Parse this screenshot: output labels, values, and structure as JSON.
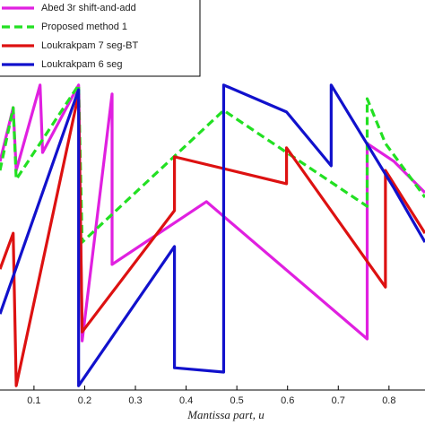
{
  "chart_data": {
    "type": "line",
    "x_label": "Mantissa part, u",
    "xlim": [
      0.033,
      0.871
    ],
    "ylim": [
      0,
      100
    ],
    "xticks": [
      0.1,
      0.2,
      0.3,
      0.4,
      0.5,
      0.6,
      0.7,
      0.8
    ],
    "series": [
      {
        "name": "Abed 3r shift-and-add",
        "color": "#e020e0",
        "dash": false,
        "x": [
          0.033,
          0.059,
          0.065,
          0.112,
          0.117,
          0.188,
          0.195,
          0.254,
          0.254,
          0.44,
          0.757,
          0.757,
          0.81,
          0.871
        ],
        "values": [
          58.6,
          72.4,
          56.3,
          78.2,
          60.9,
          78.2,
          12.6,
          75.9,
          32.2,
          48.3,
          13.1,
          63.2,
          58.6,
          50.6
        ]
      },
      {
        "name": "Proposed method 1",
        "color": "#22e022",
        "dash": true,
        "x": [
          0.033,
          0.059,
          0.065,
          0.188,
          0.195,
          0.474,
          0.757,
          0.757,
          0.793,
          0.871
        ],
        "values": [
          56.3,
          72.4,
          54.0,
          78.2,
          37.9,
          71.7,
          47.1,
          74.7,
          63.2,
          49.4
        ]
      },
      {
        "name": "Loukrakpam 7 seg-BT",
        "color": "#dd1111",
        "dash": false,
        "x": [
          0.033,
          0.059,
          0.065,
          0.188,
          0.195,
          0.377,
          0.377,
          0.598,
          0.598,
          0.793,
          0.793,
          0.871
        ],
        "values": [
          31.0,
          40.2,
          1.1,
          75.9,
          14.9,
          46.0,
          59.8,
          52.9,
          62.1,
          26.4,
          56.3,
          40.2
        ]
      },
      {
        "name": "Loukrakpam 6 seg",
        "color": "#1111cc",
        "dash": false,
        "x": [
          0.033,
          0.188,
          0.188,
          0.377,
          0.377,
          0.474,
          0.474,
          0.598,
          0.686,
          0.686,
          0.81,
          0.871
        ],
        "values": [
          19.5,
          77.0,
          1.1,
          36.8,
          5.7,
          4.6,
          78.2,
          71.3,
          57.5,
          78.2,
          51.7,
          37.9
        ]
      }
    ]
  }
}
